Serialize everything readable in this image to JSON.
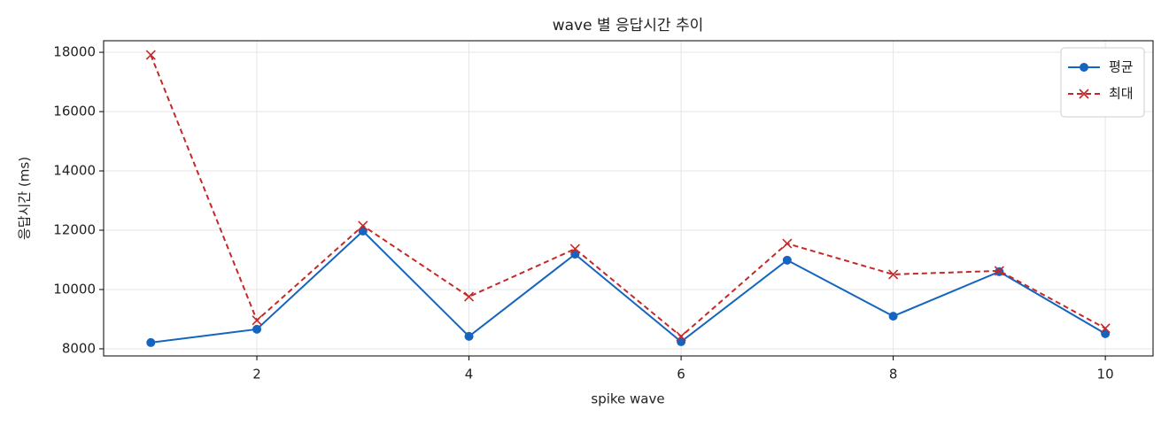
{
  "chart_data": {
    "type": "line",
    "title": "wave 별 응답시간 추이",
    "x_label": "spike wave",
    "y_label": "응답시간 (ms)",
    "x": [
      1,
      2,
      3,
      4,
      5,
      6,
      7,
      8,
      9,
      10
    ],
    "series": [
      {
        "name": "평균",
        "color": "#1565c0",
        "marker": "circle",
        "dashed": false,
        "values": [
          8210,
          8660,
          11970,
          8420,
          11190,
          8240,
          10990,
          9100,
          10600,
          8510
        ]
      },
      {
        "name": "최대",
        "color": "#c62828",
        "marker": "x",
        "dashed": true,
        "values": [
          17910,
          8960,
          12150,
          9760,
          11370,
          8420,
          11550,
          10510,
          10630,
          8690
        ]
      }
    ],
    "xlim": [
      0.555,
      10.45
    ],
    "xticks": [
      2,
      4,
      6,
      8,
      10
    ],
    "ylim": [
      7760,
      18390
    ],
    "yticks": [
      8000,
      10000,
      12000,
      14000,
      16000,
      18000
    ],
    "grid": true,
    "legend": "upper right"
  }
}
